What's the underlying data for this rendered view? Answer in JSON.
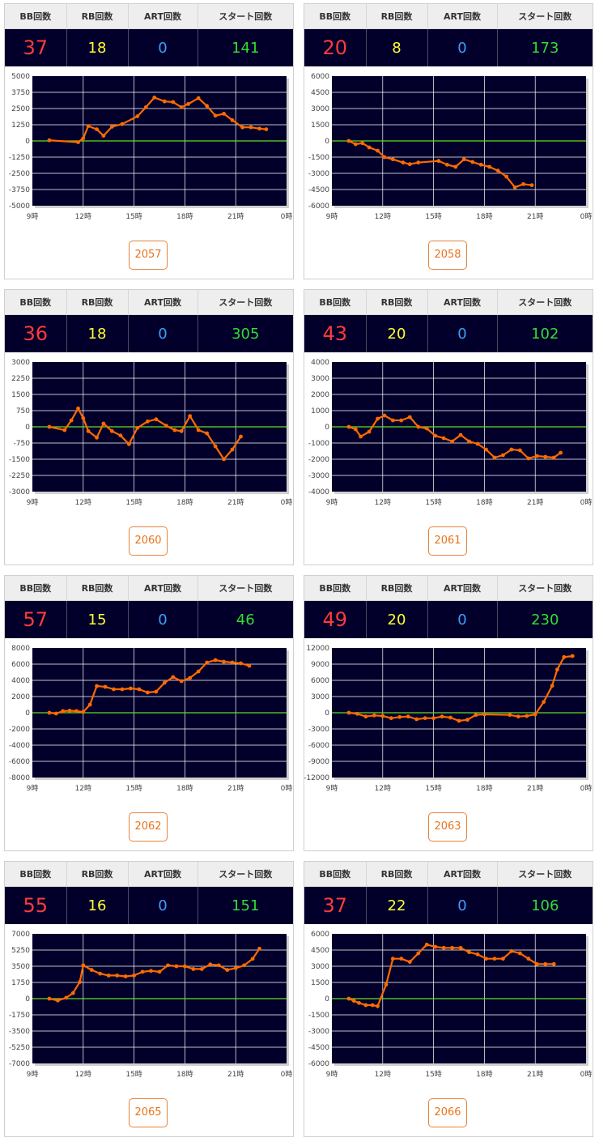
{
  "headers": [
    "BB回数",
    "RB回数",
    "ART回数",
    "スタート回数"
  ],
  "colors": {
    "bb": "#ff3b3b",
    "rb": "#ffff33",
    "art": "#3aa0ff",
    "start": "#33dd33",
    "line": "#ff6a00",
    "zero": "#66dd22",
    "plot_bg": "#02002a"
  },
  "machines": [
    {
      "id": "2057",
      "bb": "37",
      "rb": "18",
      "art": "0",
      "start": "141",
      "chart_data": {
        "type": "line",
        "x_ticks": [
          "9時",
          "12時",
          "15時",
          "18時",
          "21時",
          "0時"
        ],
        "y_ticks": [
          "5000",
          "3750",
          "2500",
          "1250",
          "0",
          "-1250",
          "-2500",
          "-3750",
          "-5000"
        ],
        "ylim": [
          -5000,
          5000
        ],
        "xlim": [
          9,
          24
        ],
        "points": [
          [
            10,
            50
          ],
          [
            11.7,
            -100
          ],
          [
            12,
            200
          ],
          [
            12.3,
            1150
          ],
          [
            12.8,
            900
          ],
          [
            13.2,
            400
          ],
          [
            13.7,
            1100
          ],
          [
            14.3,
            1300
          ],
          [
            15.2,
            1900
          ],
          [
            15.7,
            2600
          ],
          [
            16.2,
            3350
          ],
          [
            16.8,
            3050
          ],
          [
            17.3,
            3000
          ],
          [
            17.8,
            2600
          ],
          [
            18.2,
            2850
          ],
          [
            18.8,
            3300
          ],
          [
            19.3,
            2700
          ],
          [
            19.8,
            1950
          ],
          [
            20.3,
            2100
          ],
          [
            20.8,
            1600
          ],
          [
            21.4,
            1050
          ],
          [
            21.9,
            1050
          ],
          [
            22.4,
            950
          ],
          [
            22.8,
            900
          ]
        ]
      }
    },
    {
      "id": "2058",
      "bb": "20",
      "rb": "8",
      "art": "0",
      "start": "173",
      "chart_data": {
        "type": "line",
        "x_ticks": [
          "9時",
          "12時",
          "15時",
          "18時",
          "21時",
          "0時"
        ],
        "y_ticks": [
          "6000",
          "4500",
          "3000",
          "1500",
          "0",
          "-1500",
          "-3000",
          "-4500",
          "-6000"
        ],
        "ylim": [
          -6000,
          6000
        ],
        "xlim": [
          9,
          24
        ],
        "points": [
          [
            10,
            0
          ],
          [
            10.4,
            -300
          ],
          [
            10.8,
            -200
          ],
          [
            11.2,
            -600
          ],
          [
            11.7,
            -900
          ],
          [
            12.1,
            -1500
          ],
          [
            12.6,
            -1700
          ],
          [
            13.2,
            -2000
          ],
          [
            13.6,
            -2150
          ],
          [
            14.1,
            -2000
          ],
          [
            15.3,
            -1850
          ],
          [
            15.8,
            -2200
          ],
          [
            16.3,
            -2400
          ],
          [
            16.8,
            -1700
          ],
          [
            17.3,
            -1950
          ],
          [
            17.8,
            -2200
          ],
          [
            18.3,
            -2400
          ],
          [
            18.8,
            -2750
          ],
          [
            19.3,
            -3300
          ],
          [
            19.8,
            -4300
          ],
          [
            20.3,
            -4000
          ],
          [
            20.8,
            -4100
          ]
        ]
      }
    },
    {
      "id": "2060",
      "bb": "36",
      "rb": "18",
      "art": "0",
      "start": "305",
      "chart_data": {
        "type": "line",
        "x_ticks": [
          "9時",
          "12時",
          "15時",
          "18時",
          "21時",
          "0時"
        ],
        "y_ticks": [
          "3000",
          "2250",
          "1500",
          "750",
          "0",
          "-750",
          "-1500",
          "-2250",
          "-3000"
        ],
        "ylim": [
          -3000,
          3000
        ],
        "xlim": [
          9,
          24
        ],
        "points": [
          [
            10,
            0
          ],
          [
            10.9,
            -150
          ],
          [
            11.3,
            300
          ],
          [
            11.7,
            850
          ],
          [
            12,
            400
          ],
          [
            12.3,
            -200
          ],
          [
            12.8,
            -500
          ],
          [
            13.2,
            150
          ],
          [
            13.7,
            -200
          ],
          [
            14.2,
            -400
          ],
          [
            14.7,
            -800
          ],
          [
            15.2,
            -50
          ],
          [
            15.8,
            250
          ],
          [
            16.3,
            350
          ],
          [
            16.9,
            50
          ],
          [
            17.4,
            -150
          ],
          [
            17.8,
            -200
          ],
          [
            18.3,
            500
          ],
          [
            18.8,
            -150
          ],
          [
            19.3,
            -300
          ],
          [
            19.8,
            -900
          ],
          [
            20.3,
            -1500
          ],
          [
            20.8,
            -1050
          ],
          [
            21.3,
            -450
          ]
        ]
      }
    },
    {
      "id": "2061",
      "bb": "43",
      "rb": "20",
      "art": "0",
      "start": "102",
      "chart_data": {
        "type": "line",
        "x_ticks": [
          "9時",
          "12時",
          "15時",
          "18時",
          "21時",
          "0時"
        ],
        "y_ticks": [
          "4000",
          "3000",
          "2000",
          "1000",
          "0",
          "-1000",
          "-2000",
          "-3000",
          "-4000"
        ],
        "ylim": [
          -4000,
          4000
        ],
        "xlim": [
          9,
          24
        ],
        "points": [
          [
            10,
            0
          ],
          [
            10.4,
            -150
          ],
          [
            10.7,
            -600
          ],
          [
            11.2,
            -300
          ],
          [
            11.7,
            500
          ],
          [
            12.1,
            700
          ],
          [
            12.6,
            400
          ],
          [
            13.1,
            400
          ],
          [
            13.6,
            600
          ],
          [
            14.1,
            0
          ],
          [
            14.6,
            -100
          ],
          [
            15.1,
            -550
          ],
          [
            15.6,
            -700
          ],
          [
            16.1,
            -900
          ],
          [
            16.6,
            -500
          ],
          [
            17.1,
            -900
          ],
          [
            17.6,
            -1050
          ],
          [
            18.1,
            -1400
          ],
          [
            18.6,
            -1900
          ],
          [
            19.1,
            -1750
          ],
          [
            19.6,
            -1400
          ],
          [
            20.1,
            -1450
          ],
          [
            20.6,
            -1950
          ],
          [
            21.1,
            -1800
          ],
          [
            21.6,
            -1850
          ],
          [
            22.1,
            -1900
          ],
          [
            22.5,
            -1600
          ]
        ]
      }
    },
    {
      "id": "2062",
      "bb": "57",
      "rb": "15",
      "art": "0",
      "start": "46",
      "chart_data": {
        "type": "line",
        "x_ticks": [
          "9時",
          "12時",
          "15時",
          "18時",
          "21時",
          "0時"
        ],
        "y_ticks": [
          "8000",
          "6000",
          "4000",
          "2000",
          "0",
          "-2000",
          "-4000",
          "-6000",
          "-8000"
        ],
        "ylim": [
          -8000,
          8000
        ],
        "xlim": [
          9,
          24
        ],
        "points": [
          [
            10,
            0
          ],
          [
            10.4,
            -100
          ],
          [
            10.8,
            200
          ],
          [
            11.2,
            250
          ],
          [
            11.6,
            200
          ],
          [
            12,
            100
          ],
          [
            12.4,
            1000
          ],
          [
            12.8,
            3300
          ],
          [
            13.3,
            3200
          ],
          [
            13.8,
            2900
          ],
          [
            14.3,
            2900
          ],
          [
            14.8,
            3000
          ],
          [
            15.3,
            2900
          ],
          [
            15.8,
            2500
          ],
          [
            16.3,
            2600
          ],
          [
            16.8,
            3700
          ],
          [
            17.3,
            4400
          ],
          [
            17.8,
            3900
          ],
          [
            18.3,
            4300
          ],
          [
            18.8,
            5100
          ],
          [
            19.3,
            6200
          ],
          [
            19.8,
            6500
          ],
          [
            20.3,
            6300
          ],
          [
            20.8,
            6200
          ],
          [
            21.3,
            6100
          ],
          [
            21.8,
            5800
          ]
        ]
      }
    },
    {
      "id": "2063",
      "bb": "49",
      "rb": "20",
      "art": "0",
      "start": "230",
      "chart_data": {
        "type": "line",
        "x_ticks": [
          "9時",
          "12時",
          "15時",
          "18時",
          "21時",
          "0時"
        ],
        "y_ticks": [
          "12000",
          "9000",
          "6000",
          "3000",
          "0",
          "-3000",
          "-6000",
          "-9000",
          "-12000"
        ],
        "ylim": [
          -12000,
          12000
        ],
        "xlim": [
          9,
          24
        ],
        "points": [
          [
            10,
            0
          ],
          [
            10.5,
            -200
          ],
          [
            11,
            -700
          ],
          [
            11.5,
            -500
          ],
          [
            12,
            -600
          ],
          [
            12.5,
            -1000
          ],
          [
            13,
            -800
          ],
          [
            13.5,
            -700
          ],
          [
            14,
            -1200
          ],
          [
            14.5,
            -1000
          ],
          [
            15,
            -1000
          ],
          [
            15.5,
            -700
          ],
          [
            16,
            -900
          ],
          [
            16.5,
            -1500
          ],
          [
            17,
            -1300
          ],
          [
            17.5,
            -400
          ],
          [
            18,
            -300
          ],
          [
            19.5,
            -400
          ],
          [
            20,
            -700
          ],
          [
            20.5,
            -600
          ],
          [
            21,
            -300
          ],
          [
            21.5,
            2000
          ],
          [
            22,
            5000
          ],
          [
            22.3,
            8000
          ],
          [
            22.7,
            10300
          ],
          [
            23.2,
            10500
          ]
        ]
      }
    },
    {
      "id": "2065",
      "bb": "55",
      "rb": "16",
      "art": "0",
      "start": "151",
      "chart_data": {
        "type": "line",
        "x_ticks": [
          "9時",
          "12時",
          "15時",
          "18時",
          "21時",
          "0時"
        ],
        "y_ticks": [
          "7000",
          "5250",
          "3500",
          "1750",
          "0",
          "-1750",
          "-3500",
          "-5250",
          "-7000"
        ],
        "ylim": [
          -7000,
          7000
        ],
        "xlim": [
          9,
          24
        ],
        "points": [
          [
            10,
            0
          ],
          [
            10.5,
            -200
          ],
          [
            11,
            100
          ],
          [
            11.4,
            600
          ],
          [
            11.8,
            1800
          ],
          [
            12,
            3600
          ],
          [
            12.5,
            3100
          ],
          [
            13,
            2700
          ],
          [
            13.5,
            2500
          ],
          [
            14,
            2500
          ],
          [
            14.5,
            2400
          ],
          [
            15,
            2500
          ],
          [
            15.5,
            2900
          ],
          [
            16,
            3000
          ],
          [
            16.5,
            2900
          ],
          [
            17,
            3600
          ],
          [
            17.5,
            3500
          ],
          [
            18,
            3500
          ],
          [
            18.5,
            3200
          ],
          [
            19,
            3200
          ],
          [
            19.5,
            3700
          ],
          [
            20,
            3600
          ],
          [
            20.5,
            3100
          ],
          [
            21,
            3300
          ],
          [
            21.5,
            3600
          ],
          [
            22,
            4300
          ],
          [
            22.4,
            5400
          ]
        ]
      }
    },
    {
      "id": "2066",
      "bb": "37",
      "rb": "22",
      "art": "0",
      "start": "106",
      "chart_data": {
        "type": "line",
        "x_ticks": [
          "9時",
          "12時",
          "15時",
          "18時",
          "21時",
          "0時"
        ],
        "y_ticks": [
          "6000",
          "4500",
          "3000",
          "1500",
          "0",
          "-1500",
          "-3000",
          "-4500",
          "-6000"
        ],
        "ylim": [
          -6000,
          6000
        ],
        "xlim": [
          9,
          24
        ],
        "points": [
          [
            10,
            0
          ],
          [
            10.3,
            -200
          ],
          [
            10.6,
            -400
          ],
          [
            11,
            -600
          ],
          [
            11.4,
            -600
          ],
          [
            11.7,
            -700
          ],
          [
            12.2,
            1300
          ],
          [
            12.6,
            3700
          ],
          [
            13.1,
            3700
          ],
          [
            13.6,
            3400
          ],
          [
            14.1,
            4200
          ],
          [
            14.6,
            5000
          ],
          [
            15.1,
            4800
          ],
          [
            15.6,
            4700
          ],
          [
            16.1,
            4700
          ],
          [
            16.6,
            4700
          ],
          [
            17.1,
            4300
          ],
          [
            17.6,
            4100
          ],
          [
            18.1,
            3700
          ],
          [
            18.6,
            3700
          ],
          [
            19.1,
            3700
          ],
          [
            19.6,
            4400
          ],
          [
            20.1,
            4200
          ],
          [
            20.6,
            3700
          ],
          [
            21.1,
            3200
          ],
          [
            21.6,
            3200
          ],
          [
            22.1,
            3200
          ]
        ]
      }
    }
  ]
}
